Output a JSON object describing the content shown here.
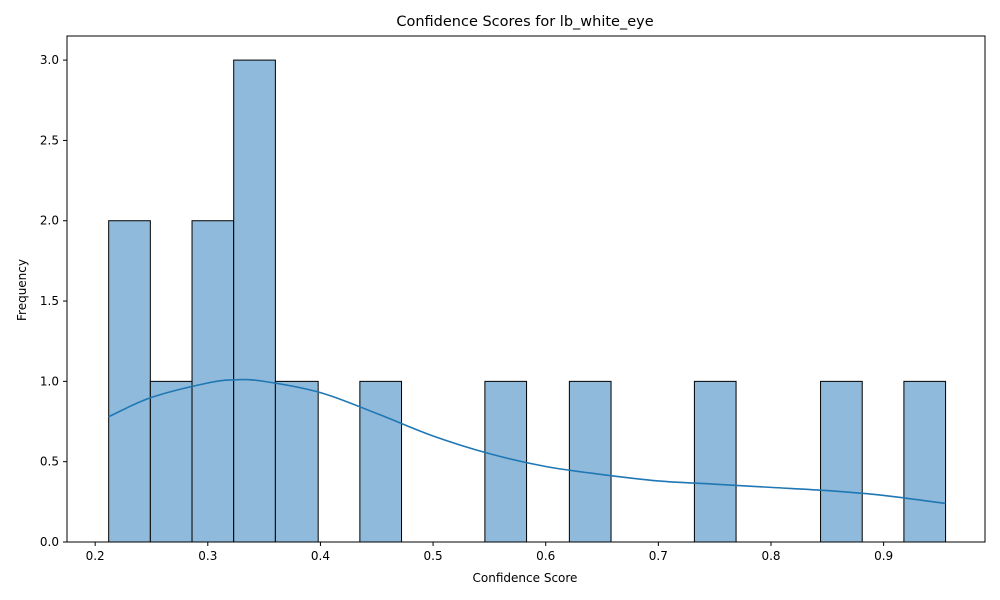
{
  "chart_data": {
    "type": "bar",
    "title": "Confidence Scores for lb_white_eye",
    "xlabel": "Confidence Score",
    "ylabel": "Frequency",
    "xlim": [
      0.175,
      0.99
    ],
    "ylim": [
      0,
      3.15
    ],
    "x_ticks": [
      0.2,
      0.3,
      0.4,
      0.5,
      0.6,
      0.7,
      0.8,
      0.9
    ],
    "x_tick_labels": [
      "0.2",
      "0.3",
      "0.4",
      "0.5",
      "0.6",
      "0.7",
      "0.8",
      "0.9"
    ],
    "y_ticks": [
      0.0,
      0.5,
      1.0,
      1.5,
      2.0,
      2.5,
      3.0
    ],
    "y_tick_labels": [
      "0.0",
      "0.5",
      "1.0",
      "1.5",
      "2.0",
      "2.5",
      "3.0"
    ],
    "bins": [
      {
        "x0": 0.212,
        "x1": 0.249,
        "count": 2
      },
      {
        "x0": 0.249,
        "x1": 0.286,
        "count": 1
      },
      {
        "x0": 0.286,
        "x1": 0.323,
        "count": 2
      },
      {
        "x0": 0.323,
        "x1": 0.36,
        "count": 3
      },
      {
        "x0": 0.36,
        "x1": 0.398,
        "count": 1
      },
      {
        "x0": 0.398,
        "x1": 0.435,
        "count": 0
      },
      {
        "x0": 0.435,
        "x1": 0.472,
        "count": 1
      },
      {
        "x0": 0.472,
        "x1": 0.509,
        "count": 0
      },
      {
        "x0": 0.509,
        "x1": 0.546,
        "count": 0
      },
      {
        "x0": 0.546,
        "x1": 0.583,
        "count": 1
      },
      {
        "x0": 0.583,
        "x1": 0.621,
        "count": 0
      },
      {
        "x0": 0.621,
        "x1": 0.658,
        "count": 1
      },
      {
        "x0": 0.658,
        "x1": 0.695,
        "count": 0
      },
      {
        "x0": 0.695,
        "x1": 0.732,
        "count": 0
      },
      {
        "x0": 0.732,
        "x1": 0.769,
        "count": 1
      },
      {
        "x0": 0.769,
        "x1": 0.806,
        "count": 0
      },
      {
        "x0": 0.806,
        "x1": 0.844,
        "count": 0
      },
      {
        "x0": 0.844,
        "x1": 0.881,
        "count": 1
      },
      {
        "x0": 0.881,
        "x1": 0.918,
        "count": 0
      },
      {
        "x0": 0.918,
        "x1": 0.955,
        "count": 1
      }
    ],
    "kde": {
      "x": [
        0.212,
        0.25,
        0.3,
        0.325,
        0.35,
        0.4,
        0.45,
        0.5,
        0.55,
        0.6,
        0.65,
        0.7,
        0.75,
        0.8,
        0.85,
        0.9,
        0.955
      ],
      "y": [
        0.78,
        0.9,
        0.99,
        1.01,
        1.0,
        0.93,
        0.8,
        0.66,
        0.55,
        0.47,
        0.42,
        0.38,
        0.36,
        0.34,
        0.32,
        0.29,
        0.24
      ]
    },
    "grid": false,
    "colors": {
      "bar_fill": "#8fbadb",
      "bar_edge": "#000000",
      "kde_line": "#1f77b4"
    }
  }
}
